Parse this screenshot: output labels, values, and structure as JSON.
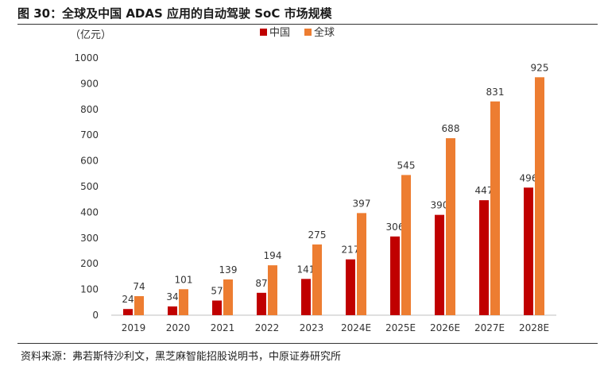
{
  "header": {
    "title": "图 30：全球及中国 ADAS 应用的自动驾驶 SoC 市场规模"
  },
  "footer": {
    "source": "资料来源：弗若斯特沙利文，黑芝麻智能招股说明书，中原证券研究所"
  },
  "chart_data": {
    "type": "bar",
    "categories": [
      "2019",
      "2020",
      "2021",
      "2022",
      "2023",
      "2024E",
      "2025E",
      "2026E",
      "2027E",
      "2028E"
    ],
    "series": [
      {
        "name": "中国",
        "values": [
          24,
          34,
          57,
          87,
          141,
          217,
          306,
          390,
          447,
          496
        ],
        "color": "#c00000"
      },
      {
        "name": "全球",
        "values": [
          74,
          101,
          139,
          194,
          275,
          397,
          545,
          688,
          831,
          925
        ],
        "color": "#ed7d31"
      }
    ],
    "unit_label": "（亿元）",
    "ylim": [
      0,
      1000
    ],
    "yticks": [
      0,
      100,
      200,
      300,
      400,
      500,
      600,
      700,
      800,
      900,
      1000
    ],
    "legend_position": "top",
    "grid": false
  }
}
